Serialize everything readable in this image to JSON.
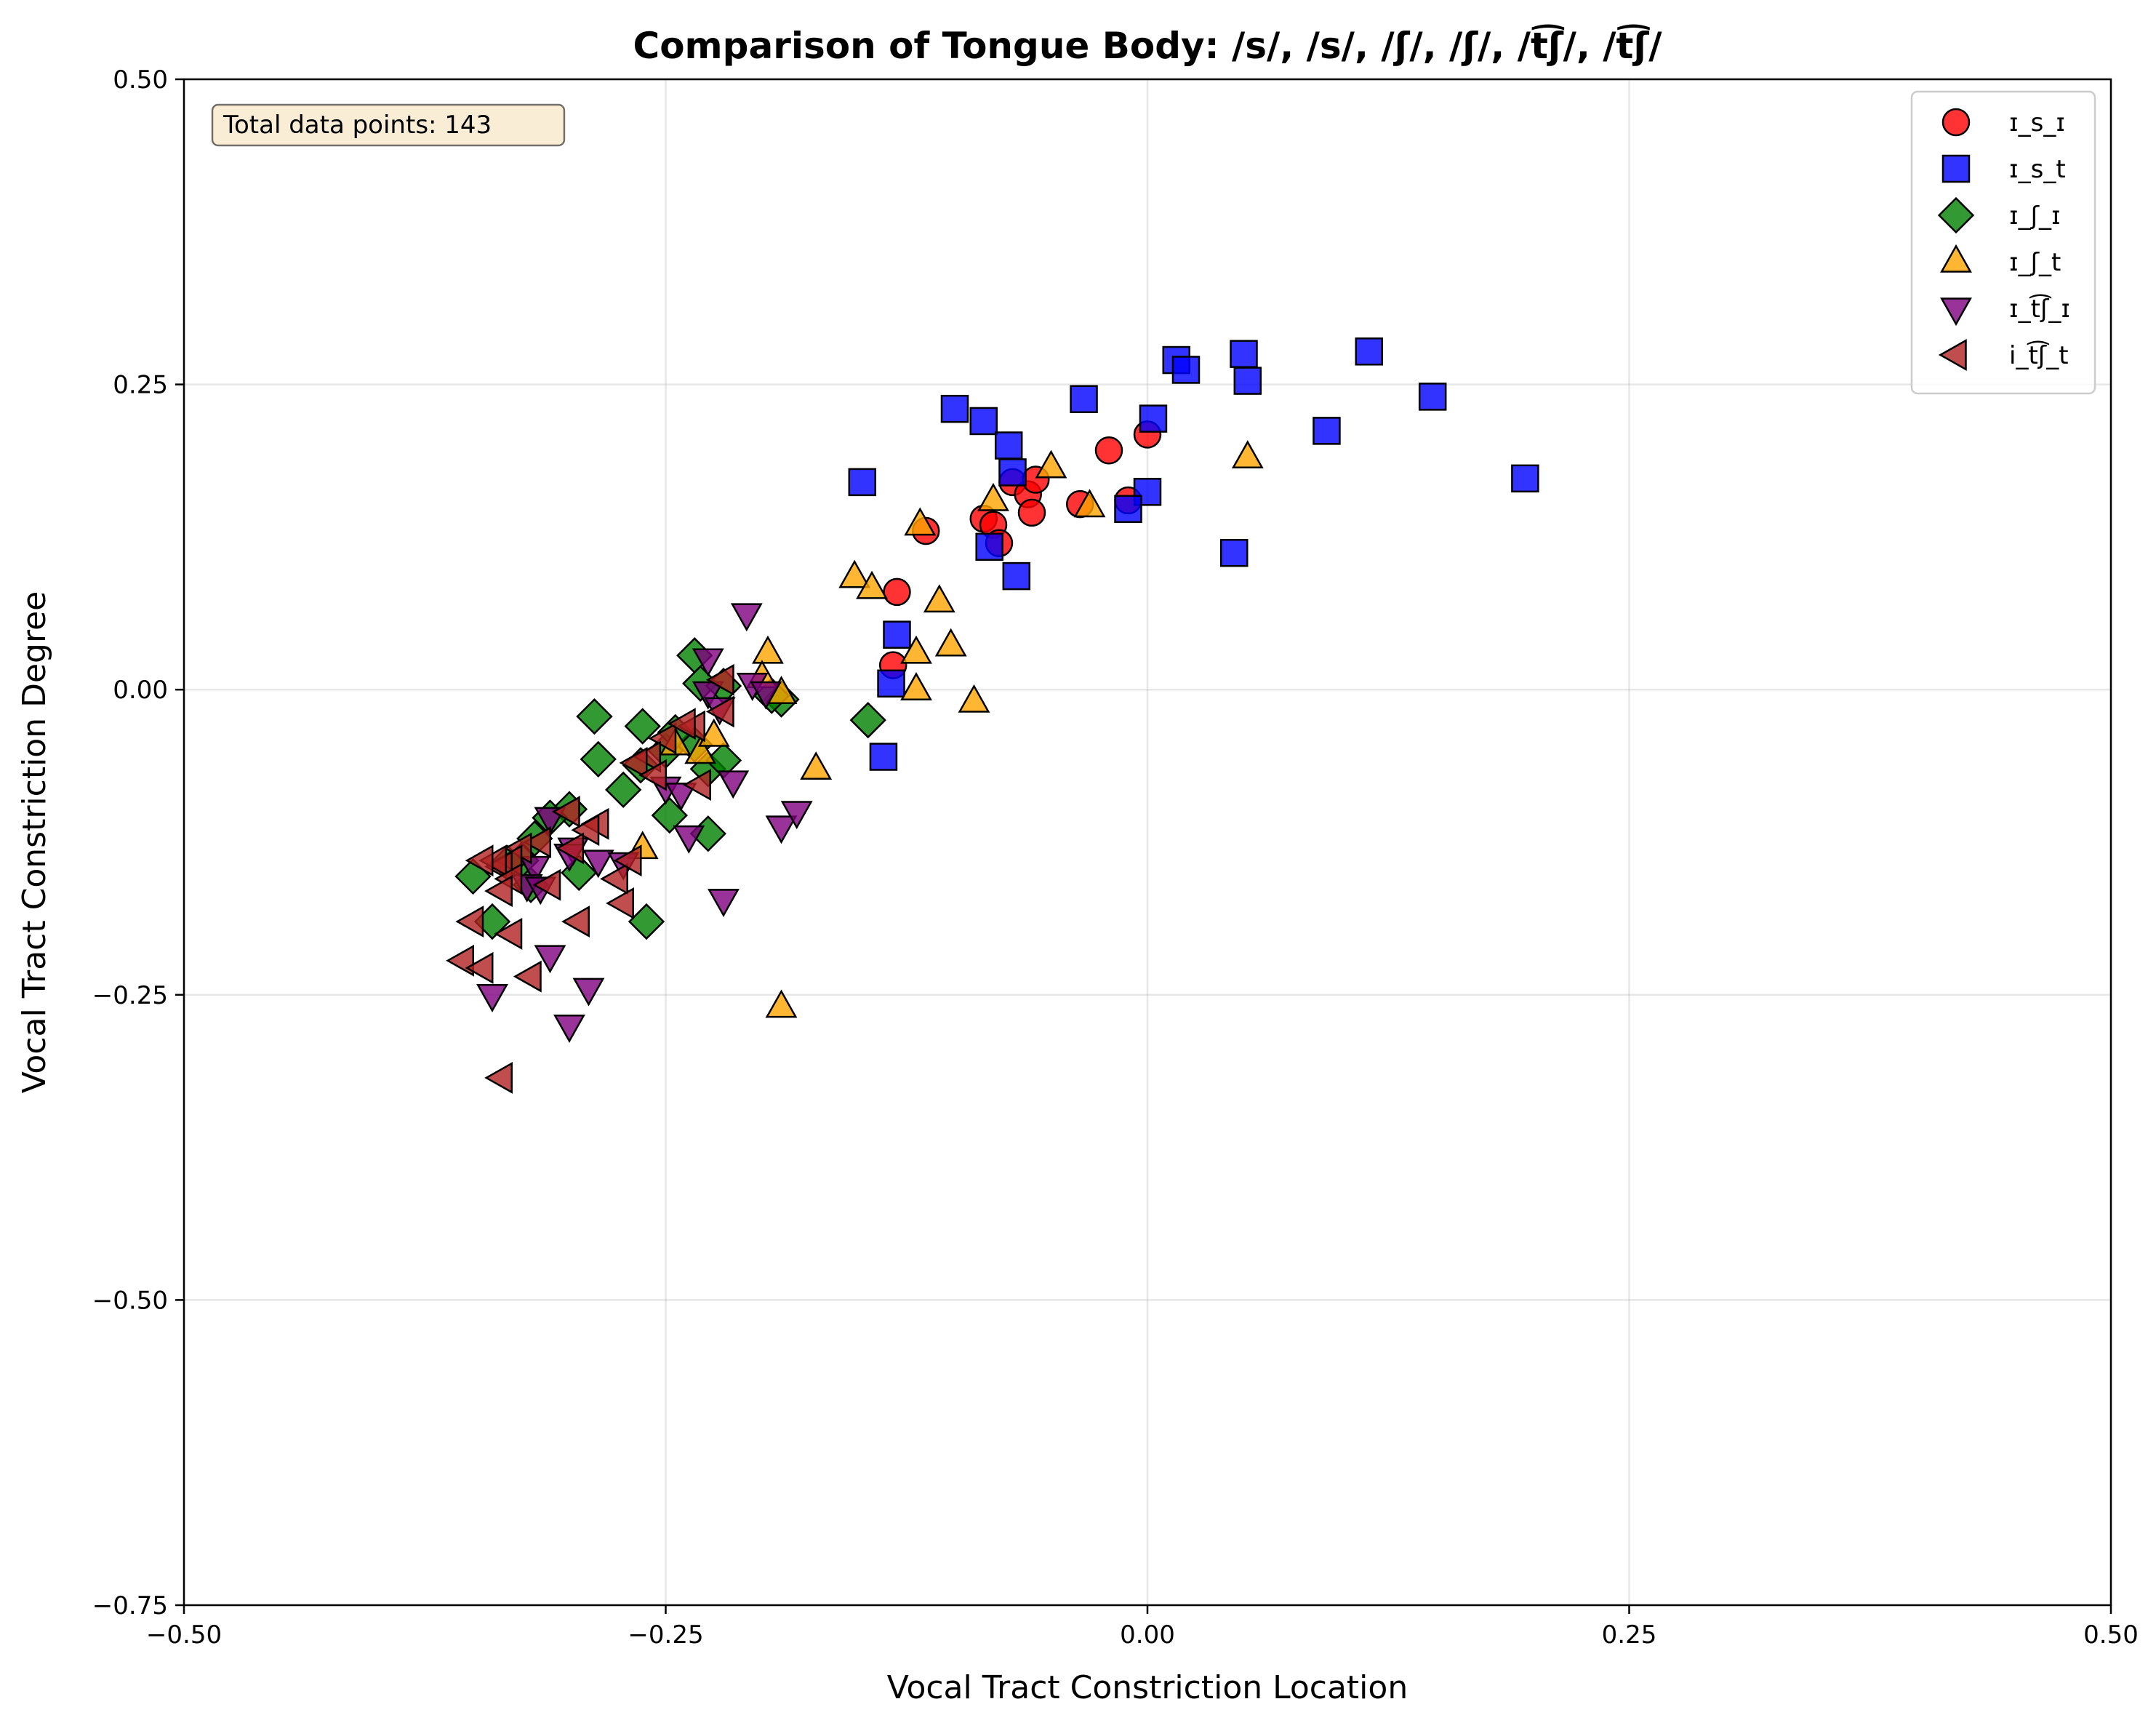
{
  "chart_data": {
    "type": "scatter",
    "title": "Comparison of Tongue Body: /s/, /s/, /ʃ/, /ʃ/, /t͡ʃ/, /t͡ʃ/",
    "xlabel": "Vocal Tract Constriction Location",
    "ylabel": "Vocal Tract Constriction Degree",
    "xlim": [
      -0.5,
      0.5
    ],
    "ylim": [
      -0.75,
      0.5
    ],
    "xticks": [
      -0.5,
      -0.25,
      0.0,
      0.25,
      0.5
    ],
    "yticks": [
      -0.75,
      -0.5,
      -0.25,
      0.0,
      0.25,
      0.5
    ],
    "xtick_labels": [
      "−0.50",
      "−0.25",
      "0.00",
      "0.25",
      "0.50"
    ],
    "ytick_labels": [
      "−0.75",
      "−0.50",
      "−0.25",
      "0.00",
      "0.25",
      "0.50"
    ],
    "grid": true,
    "legend_position": "top-right",
    "annotation": "Total data points: 143",
    "series": [
      {
        "name": "ɪ_s_ɪ",
        "marker": "circle",
        "color": "#ff0000",
        "points": [
          [
            -0.115,
            0.13
          ],
          [
            -0.085,
            0.14
          ],
          [
            -0.08,
            0.135
          ],
          [
            -0.077,
            0.12
          ],
          [
            -0.07,
            0.17
          ],
          [
            -0.062,
            0.16
          ],
          [
            -0.06,
            0.145
          ],
          [
            -0.058,
            0.172
          ],
          [
            -0.035,
            0.152
          ],
          [
            -0.02,
            0.196
          ],
          [
            -0.01,
            0.155
          ],
          [
            0.0,
            0.209
          ],
          [
            -0.13,
            0.08
          ],
          [
            -0.132,
            0.02
          ]
        ]
      },
      {
        "name": "ɪ_s_t",
        "marker": "square",
        "color": "#0000ff",
        "points": [
          [
            -0.1,
            0.23
          ],
          [
            -0.085,
            0.22
          ],
          [
            -0.072,
            0.2
          ],
          [
            -0.07,
            0.178
          ],
          [
            -0.082,
            0.117
          ],
          [
            -0.068,
            0.093
          ],
          [
            -0.148,
            0.17
          ],
          [
            -0.13,
            0.045
          ],
          [
            -0.133,
            0.005
          ],
          [
            -0.137,
            -0.055
          ],
          [
            -0.033,
            0.238
          ],
          [
            0.003,
            0.222
          ],
          [
            0.015,
            0.27
          ],
          [
            0.02,
            0.262
          ],
          [
            0.05,
            0.275
          ],
          [
            0.052,
            0.253
          ],
          [
            0.115,
            0.277
          ],
          [
            0.148,
            0.24
          ],
          [
            0.093,
            0.212
          ],
          [
            0.0,
            0.162
          ],
          [
            -0.01,
            0.148
          ],
          [
            0.045,
            0.112
          ],
          [
            0.196,
            0.173
          ]
        ]
      },
      {
        "name": "ɪ_ʃ_ɪ",
        "marker": "diamond",
        "color": "#008000",
        "points": [
          [
            -0.235,
            0.028
          ],
          [
            -0.232,
            0.005
          ],
          [
            -0.22,
            0.003
          ],
          [
            -0.19,
            -0.008
          ],
          [
            -0.287,
            -0.022
          ],
          [
            -0.262,
            -0.03
          ],
          [
            -0.285,
            -0.057
          ],
          [
            -0.263,
            -0.062
          ],
          [
            -0.272,
            -0.082
          ],
          [
            -0.248,
            -0.103
          ],
          [
            -0.228,
            -0.118
          ],
          [
            -0.25,
            -0.05
          ],
          [
            -0.235,
            -0.045
          ],
          [
            -0.228,
            -0.065
          ],
          [
            -0.145,
            -0.025
          ],
          [
            -0.3,
            -0.098
          ],
          [
            -0.31,
            -0.105
          ],
          [
            -0.318,
            -0.122
          ],
          [
            -0.325,
            -0.14
          ],
          [
            -0.332,
            -0.142
          ],
          [
            -0.35,
            -0.153
          ],
          [
            -0.32,
            -0.16
          ],
          [
            -0.295,
            -0.15
          ],
          [
            -0.34,
            -0.19
          ],
          [
            -0.26,
            -0.19
          ],
          [
            -0.245,
            -0.035
          ],
          [
            -0.22,
            -0.058
          ],
          [
            -0.195,
            -0.005
          ]
        ]
      },
      {
        "name": "ɪ_ʃ_t",
        "marker": "triangle-up",
        "color": "#ffa500",
        "points": [
          [
            -0.152,
            0.092
          ],
          [
            -0.143,
            0.083
          ],
          [
            -0.118,
            0.135
          ],
          [
            -0.108,
            0.072
          ],
          [
            -0.12,
            0.03
          ],
          [
            -0.102,
            0.036
          ],
          [
            -0.12,
            0.0
          ],
          [
            -0.09,
            -0.01
          ],
          [
            -0.08,
            0.155
          ],
          [
            -0.05,
            0.182
          ],
          [
            -0.03,
            0.15
          ],
          [
            0.052,
            0.19
          ],
          [
            -0.197,
            0.03
          ],
          [
            -0.2,
            0.01
          ],
          [
            -0.19,
            -0.003
          ],
          [
            -0.172,
            -0.065
          ],
          [
            -0.19,
            -0.26
          ],
          [
            -0.245,
            -0.045
          ],
          [
            -0.232,
            -0.052
          ],
          [
            -0.225,
            -0.038
          ],
          [
            -0.262,
            -0.13
          ]
        ]
      },
      {
        "name": "ɪ_t͡ʃ_ɪ",
        "marker": "triangle-down",
        "color": "#800080",
        "points": [
          [
            -0.208,
            0.062
          ],
          [
            -0.228,
            0.025
          ],
          [
            -0.205,
            0.005
          ],
          [
            -0.198,
            -0.002
          ],
          [
            -0.228,
            -0.002
          ],
          [
            -0.222,
            -0.015
          ],
          [
            -0.25,
            -0.08
          ],
          [
            -0.242,
            -0.085
          ],
          [
            -0.215,
            -0.075
          ],
          [
            -0.238,
            -0.12
          ],
          [
            -0.22,
            -0.172
          ],
          [
            -0.19,
            -0.112
          ],
          [
            -0.182,
            -0.1
          ],
          [
            -0.31,
            -0.105
          ],
          [
            -0.298,
            -0.13
          ],
          [
            -0.3,
            -0.135
          ],
          [
            -0.285,
            -0.14
          ],
          [
            -0.272,
            -0.142
          ],
          [
            -0.318,
            -0.145
          ],
          [
            -0.322,
            -0.16
          ],
          [
            -0.31,
            -0.218
          ],
          [
            -0.34,
            -0.25
          ],
          [
            -0.29,
            -0.245
          ],
          [
            -0.3,
            -0.275
          ],
          [
            -0.315,
            -0.162
          ]
        ]
      },
      {
        "name": "i_t͡ʃ_t",
        "marker": "triangle-left",
        "color": "#b22222",
        "points": [
          [
            -0.22,
            0.008
          ],
          [
            -0.22,
            -0.018
          ],
          [
            -0.235,
            -0.03
          ],
          [
            -0.25,
            -0.04
          ],
          [
            -0.258,
            -0.055
          ],
          [
            -0.265,
            -0.06
          ],
          [
            -0.255,
            -0.07
          ],
          [
            -0.232,
            -0.078
          ],
          [
            -0.285,
            -0.11
          ],
          [
            -0.29,
            -0.115
          ],
          [
            -0.3,
            -0.1
          ],
          [
            -0.315,
            -0.125
          ],
          [
            -0.325,
            -0.13
          ],
          [
            -0.33,
            -0.14
          ],
          [
            -0.335,
            -0.145
          ],
          [
            -0.338,
            -0.14
          ],
          [
            -0.345,
            -0.14
          ],
          [
            -0.33,
            -0.155
          ],
          [
            -0.31,
            -0.16
          ],
          [
            -0.298,
            -0.13
          ],
          [
            -0.275,
            -0.155
          ],
          [
            -0.272,
            -0.175
          ],
          [
            -0.335,
            -0.165
          ],
          [
            -0.35,
            -0.19
          ],
          [
            -0.355,
            -0.222
          ],
          [
            -0.345,
            -0.228
          ],
          [
            -0.33,
            -0.2
          ],
          [
            -0.32,
            -0.235
          ],
          [
            -0.295,
            -0.19
          ],
          [
            -0.335,
            -0.318
          ],
          [
            -0.268,
            -0.14
          ],
          [
            -0.24,
            -0.028
          ]
        ]
      }
    ]
  }
}
